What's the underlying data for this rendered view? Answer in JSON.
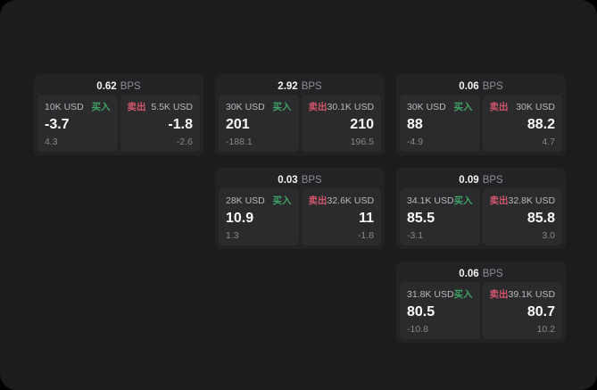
{
  "labels": {
    "bps_unit": "BPS",
    "buy": "买入",
    "sell": "卖出"
  },
  "colors": {
    "outer_background": "#000000",
    "surface": "#1c1c1e",
    "card": "#232326",
    "panel": "#2b2b2e",
    "buy_green": "#3ea265",
    "sell_red": "#d2556e",
    "big_number": "#fafafa",
    "muted_text": "#87878a"
  },
  "cards": [
    {
      "bps": "0.62",
      "buy": {
        "amount": "10K USD",
        "price": "-3.7",
        "delta": "4.3"
      },
      "sell": {
        "amount": "5.5K USD",
        "price": "-1.8",
        "delta": "-2.6"
      }
    },
    {
      "bps": "2.92",
      "buy": {
        "amount": "30K USD",
        "price": "201",
        "delta": "-188.1"
      },
      "sell": {
        "amount": "30.1K USD",
        "price": "210",
        "delta": "196.5"
      }
    },
    {
      "bps": "0.06",
      "buy": {
        "amount": "30K USD",
        "price": "88",
        "delta": "-4.9"
      },
      "sell": {
        "amount": "30K USD",
        "price": "88.2",
        "delta": "4.7"
      }
    },
    {
      "bps": "0.03",
      "buy": {
        "amount": "28K USD",
        "price": "10.9",
        "delta": "1.3"
      },
      "sell": {
        "amount": "32.6K USD",
        "price": "11",
        "delta": "-1.8"
      }
    },
    {
      "bps": "0.09",
      "buy": {
        "amount": "34.1K USD",
        "price": "85.5",
        "delta": "-3.1"
      },
      "sell": {
        "amount": "32.8K USD",
        "price": "85.8",
        "delta": "3.0"
      }
    },
    {
      "bps": "0.06",
      "buy": {
        "amount": "31.8K USD",
        "price": "80.5",
        "delta": "-10.8"
      },
      "sell": {
        "amount": "39.1K USD",
        "price": "80.7",
        "delta": "10.2"
      }
    }
  ]
}
